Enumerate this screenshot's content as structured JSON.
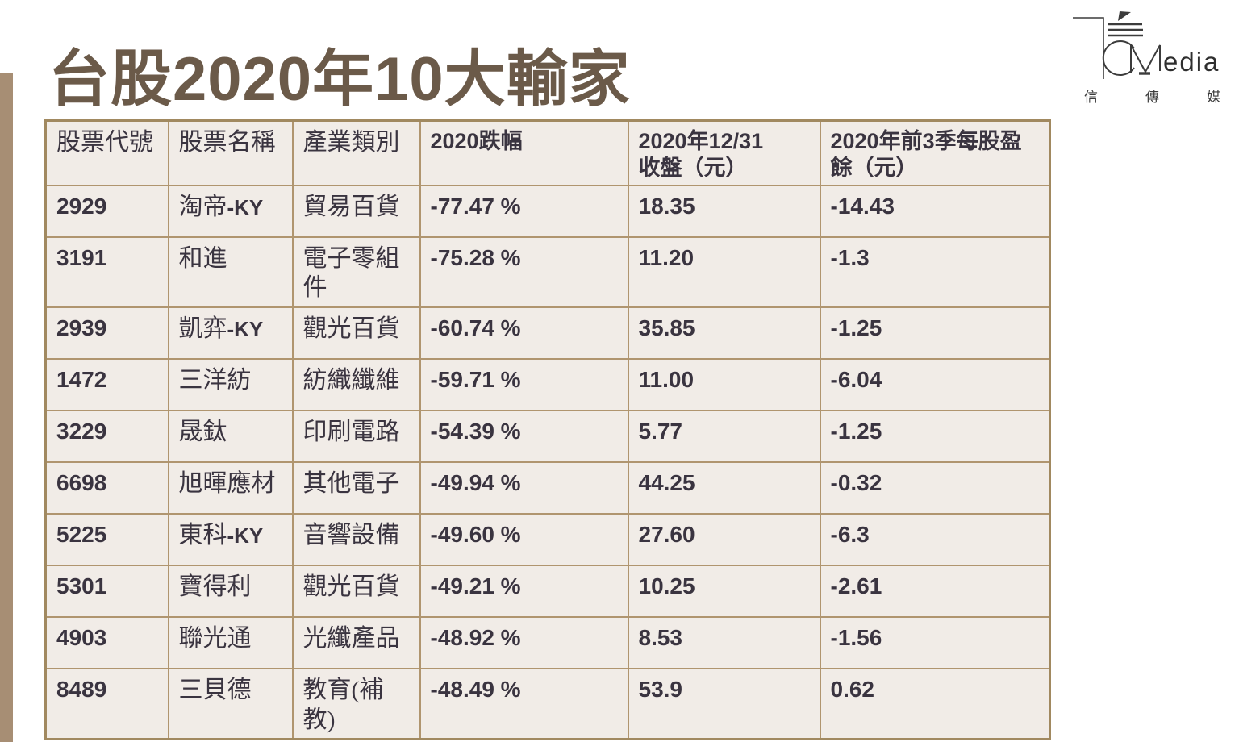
{
  "page": {
    "title": "台股2020年10大輸家"
  },
  "logo": {
    "media_text": "edia",
    "chinese_name": "信傳媒"
  },
  "colors": {
    "accent-brown": "#6b5a49",
    "bar-color": "#a78e74",
    "table-border": "#b0956f",
    "outer-border": "#a18960",
    "cell-bg": "#f1ece7",
    "text-color": "#3a3440",
    "logo-ink": "#3c3c3c"
  },
  "table": {
    "headers": [
      "股票代號",
      "股票名稱",
      "產業類別",
      "2020跌幅",
      "2020年12/31\n收盤（元）",
      "2020年前3季每股盈餘（元）"
    ],
    "rows": [
      {
        "code": "2929",
        "name": "淘帝-KY",
        "industry": "貿易百貨",
        "drop": "-77.47 %",
        "close": "18.35",
        "eps": "-14.43"
      },
      {
        "code": "3191",
        "name": "和進",
        "industry": "電子零組件",
        "drop": "-75.28 %",
        "close": "11.20",
        "eps": "-1.3"
      },
      {
        "code": "2939",
        "name": "凱弈-KY",
        "industry": "觀光百貨",
        "drop": "-60.74 %",
        "close": "35.85",
        "eps": "-1.25"
      },
      {
        "code": "1472",
        "name": "三洋紡",
        "industry": "紡織纖維",
        "drop": "-59.71 %",
        "close": "11.00",
        "eps": "-6.04"
      },
      {
        "code": "3229",
        "name": "晟鈦",
        "industry": "印刷電路",
        "drop": "-54.39 %",
        "close": "5.77",
        "eps": "-1.25"
      },
      {
        "code": "6698",
        "name": "旭暉應材",
        "industry": "其他電子",
        "drop": "-49.94 %",
        "close": "44.25",
        "eps": "-0.32"
      },
      {
        "code": "5225",
        "name": "東科-KY",
        "industry": "音響設備",
        "drop": "-49.60 %",
        "close": "27.60",
        "eps": "-6.3"
      },
      {
        "code": "5301",
        "name": "寶得利",
        "industry": "觀光百貨",
        "drop": "-49.21 %",
        "close": "10.25",
        "eps": "-2.61"
      },
      {
        "code": "4903",
        "name": "聯光通",
        "industry": "光纖產品",
        "drop": "-48.92 %",
        "close": "8.53",
        "eps": "-1.56"
      },
      {
        "code": "8489",
        "name": "三貝德",
        "industry": "教育(補教)",
        "drop": "-48.49 %",
        "close": "53.9",
        "eps": "0.62"
      }
    ]
  }
}
